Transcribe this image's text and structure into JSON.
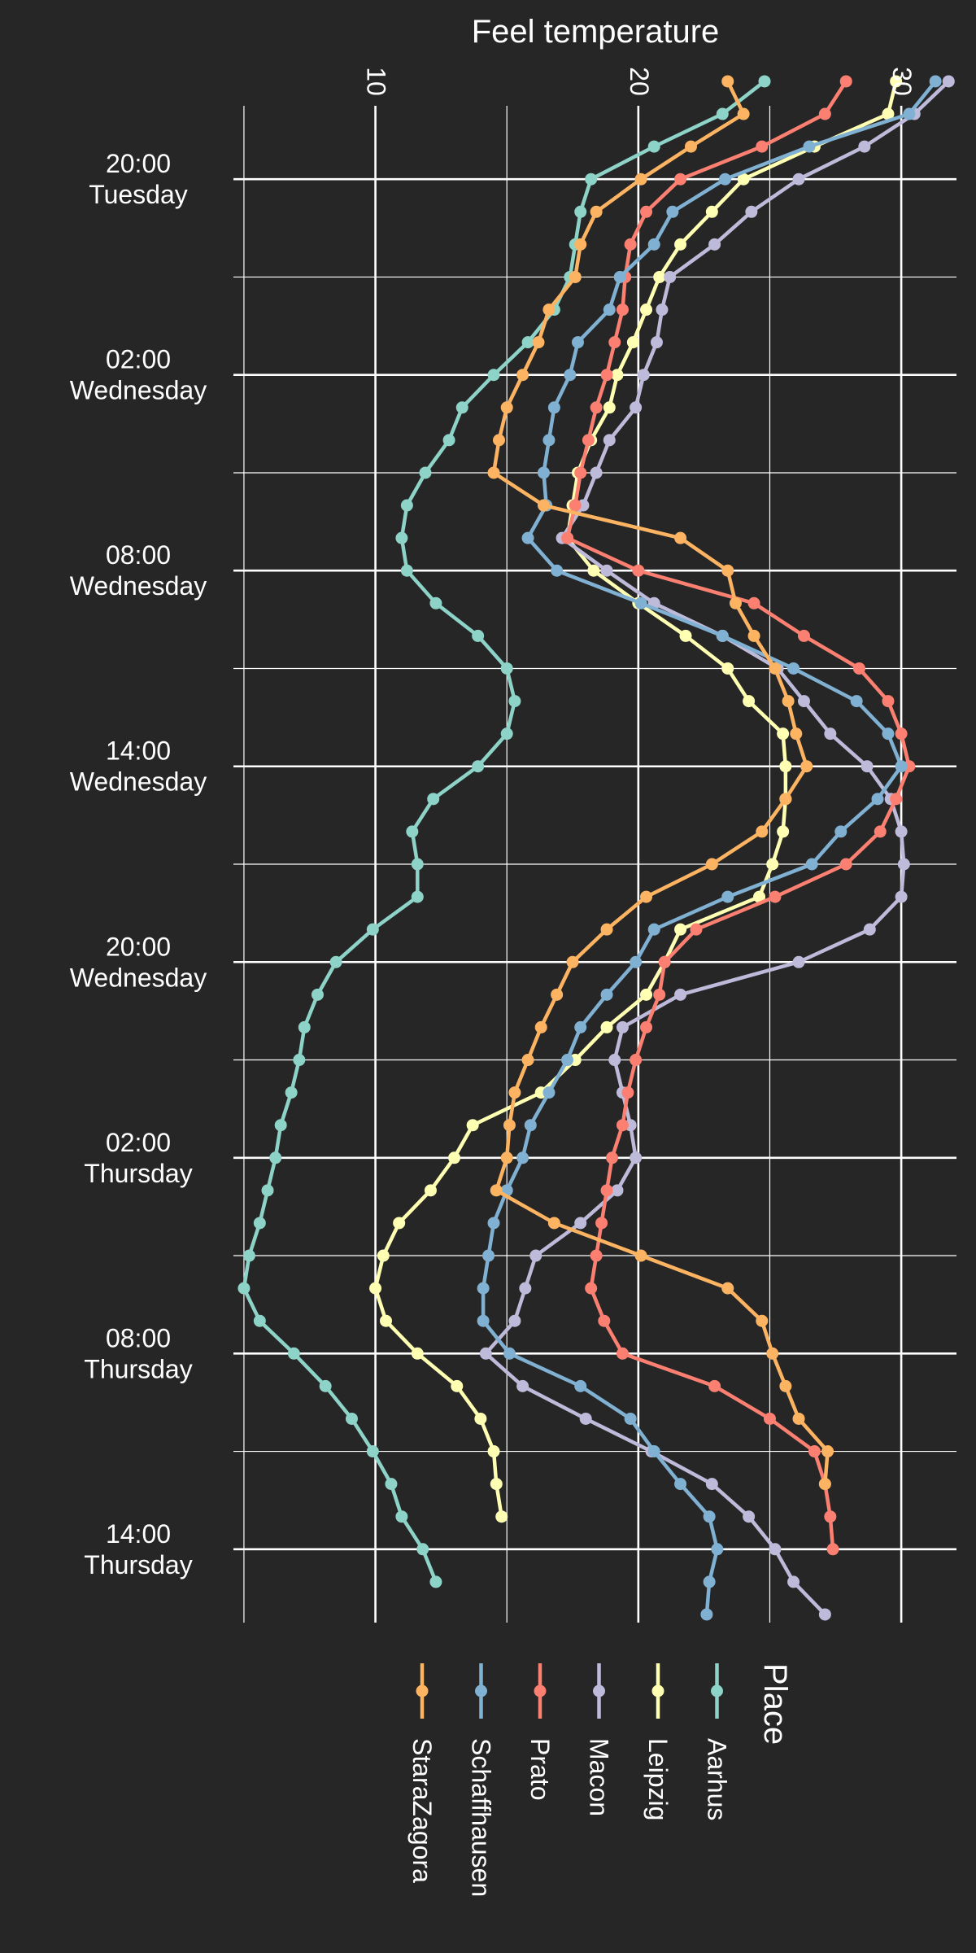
{
  "chart_data": {
    "type": "line",
    "title": "",
    "ylabel": "Feel temperature",
    "xlabel": "",
    "temp_ticks": [
      10,
      20,
      30
    ],
    "temp_range": [
      4.6,
      32.1
    ],
    "time_range": [
      -2.25,
      44.25
    ],
    "time_ticks": [
      {
        "t": 0,
        "time": "20:00",
        "day": "Tuesday"
      },
      {
        "t": 6,
        "time": "02:00",
        "day": "Wednesday"
      },
      {
        "t": 12,
        "time": "08:00",
        "day": "Wednesday"
      },
      {
        "t": 18,
        "time": "14:00",
        "day": "Wednesday"
      },
      {
        "t": 24,
        "time": "20:00",
        "day": "Wednesday"
      },
      {
        "t": 30,
        "time": "02:00",
        "day": "Thursday"
      },
      {
        "t": 36,
        "time": "08:00",
        "day": "Thursday"
      },
      {
        "t": 42,
        "time": "14:00",
        "day": "Thursday"
      }
    ],
    "legend": {
      "title": "Place",
      "placement": "bottom"
    },
    "series": [
      {
        "name": "Aarhus",
        "color": "#8DD3C7",
        "start": -3,
        "values": [
          24.8,
          23.2,
          20.6,
          18.2,
          17.8,
          17.6,
          17.4,
          16.8,
          15.8,
          14.5,
          13.3,
          12.8,
          11.9,
          11.2,
          11.0,
          11.2,
          12.3,
          13.9,
          15.0,
          15.3,
          15.0,
          13.9,
          12.2,
          11.4,
          11.6,
          11.6,
          9.9,
          8.5,
          7.8,
          7.3,
          7.1,
          6.8,
          6.4,
          6.2,
          5.9,
          5.6,
          5.2,
          5.0,
          5.6,
          6.9,
          8.1,
          9.1,
          9.9,
          10.6,
          11.0,
          11.8,
          12.3
        ]
      },
      {
        "name": "Leipzig",
        "color": "#FFFFB3",
        "start": -3,
        "values": [
          29.8,
          29.5,
          26.7,
          24.0,
          22.8,
          21.6,
          20.8,
          20.3,
          19.8,
          19.2,
          18.9,
          18.2,
          17.7,
          17.5,
          17.3,
          18.3,
          20.0,
          21.8,
          23.4,
          24.2,
          25.5,
          25.6,
          25.6,
          25.5,
          25.1,
          24.6,
          21.6,
          21.0,
          20.3,
          18.8,
          17.6,
          16.3,
          13.7,
          13.0,
          12.1,
          10.9,
          10.3,
          10.0,
          10.4,
          11.6,
          13.1,
          14.0,
          14.5,
          14.6,
          14.8
        ]
      },
      {
        "name": "Macon",
        "color": "#BEBADA",
        "start": -3,
        "values": [
          31.8,
          30.5,
          28.6,
          26.1,
          24.3,
          22.9,
          21.2,
          20.9,
          20.7,
          20.2,
          19.9,
          18.9,
          18.4,
          17.9,
          17.1,
          18.8,
          20.6,
          23.2,
          25.3,
          26.3,
          27.3,
          28.7,
          29.6,
          30.0,
          30.1,
          30.0,
          28.8,
          26.1,
          21.6,
          19.4,
          19.1,
          19.4,
          19.7,
          19.9,
          19.2,
          17.8,
          16.1,
          15.7,
          15.3,
          14.2,
          15.6,
          18.0,
          20.5,
          22.8,
          24.2,
          25.2,
          25.9,
          27.1
        ]
      },
      {
        "name": "Prato",
        "color": "#FB8072",
        "start": -3,
        "values": [
          27.9,
          27.1,
          24.7,
          21.6,
          20.3,
          19.7,
          19.5,
          19.4,
          19.1,
          18.8,
          18.4,
          18.1,
          17.8,
          17.6,
          17.3,
          20.0,
          24.4,
          26.3,
          28.4,
          29.5,
          30.0,
          30.3,
          29.8,
          29.2,
          27.9,
          25.2,
          22.2,
          21.0,
          20.8,
          20.3,
          19.9,
          19.6,
          19.4,
          19.0,
          18.8,
          18.6,
          18.4,
          18.2,
          18.7,
          19.4,
          22.9,
          25.0,
          26.7,
          27.1,
          27.3,
          27.4
        ]
      },
      {
        "name": "Schaffhausen",
        "color": "#80B1D3",
        "start": -3,
        "values": [
          31.3,
          30.3,
          26.5,
          23.3,
          21.3,
          20.6,
          19.3,
          18.9,
          17.7,
          17.4,
          16.8,
          16.6,
          16.4,
          16.5,
          15.8,
          16.9,
          20.1,
          23.2,
          25.9,
          28.3,
          29.5,
          30.0,
          29.1,
          27.7,
          26.6,
          23.4,
          20.6,
          19.9,
          18.8,
          17.8,
          17.3,
          16.6,
          15.9,
          15.6,
          15.0,
          14.5,
          14.3,
          14.1,
          14.1,
          15.1,
          17.8,
          19.7,
          20.6,
          21.6,
          22.7,
          23.0,
          22.7,
          22.6
        ]
      },
      {
        "name": "StaraZagora",
        "color": "#FDB462",
        "start": -3,
        "values": [
          23.4,
          24.0,
          22.0,
          20.1,
          18.4,
          17.8,
          17.6,
          16.6,
          16.2,
          15.6,
          15.0,
          14.7,
          14.5,
          16.4,
          21.6,
          23.4,
          23.7,
          24.4,
          25.2,
          25.7,
          26.0,
          26.4,
          25.6,
          24.7,
          22.8,
          20.3,
          18.8,
          17.5,
          16.9,
          16.3,
          15.8,
          15.3,
          15.1,
          15.0,
          14.6,
          16.8,
          20.1,
          23.4,
          24.7,
          25.1,
          25.6,
          26.1,
          27.2,
          27.1
        ]
      }
    ]
  }
}
